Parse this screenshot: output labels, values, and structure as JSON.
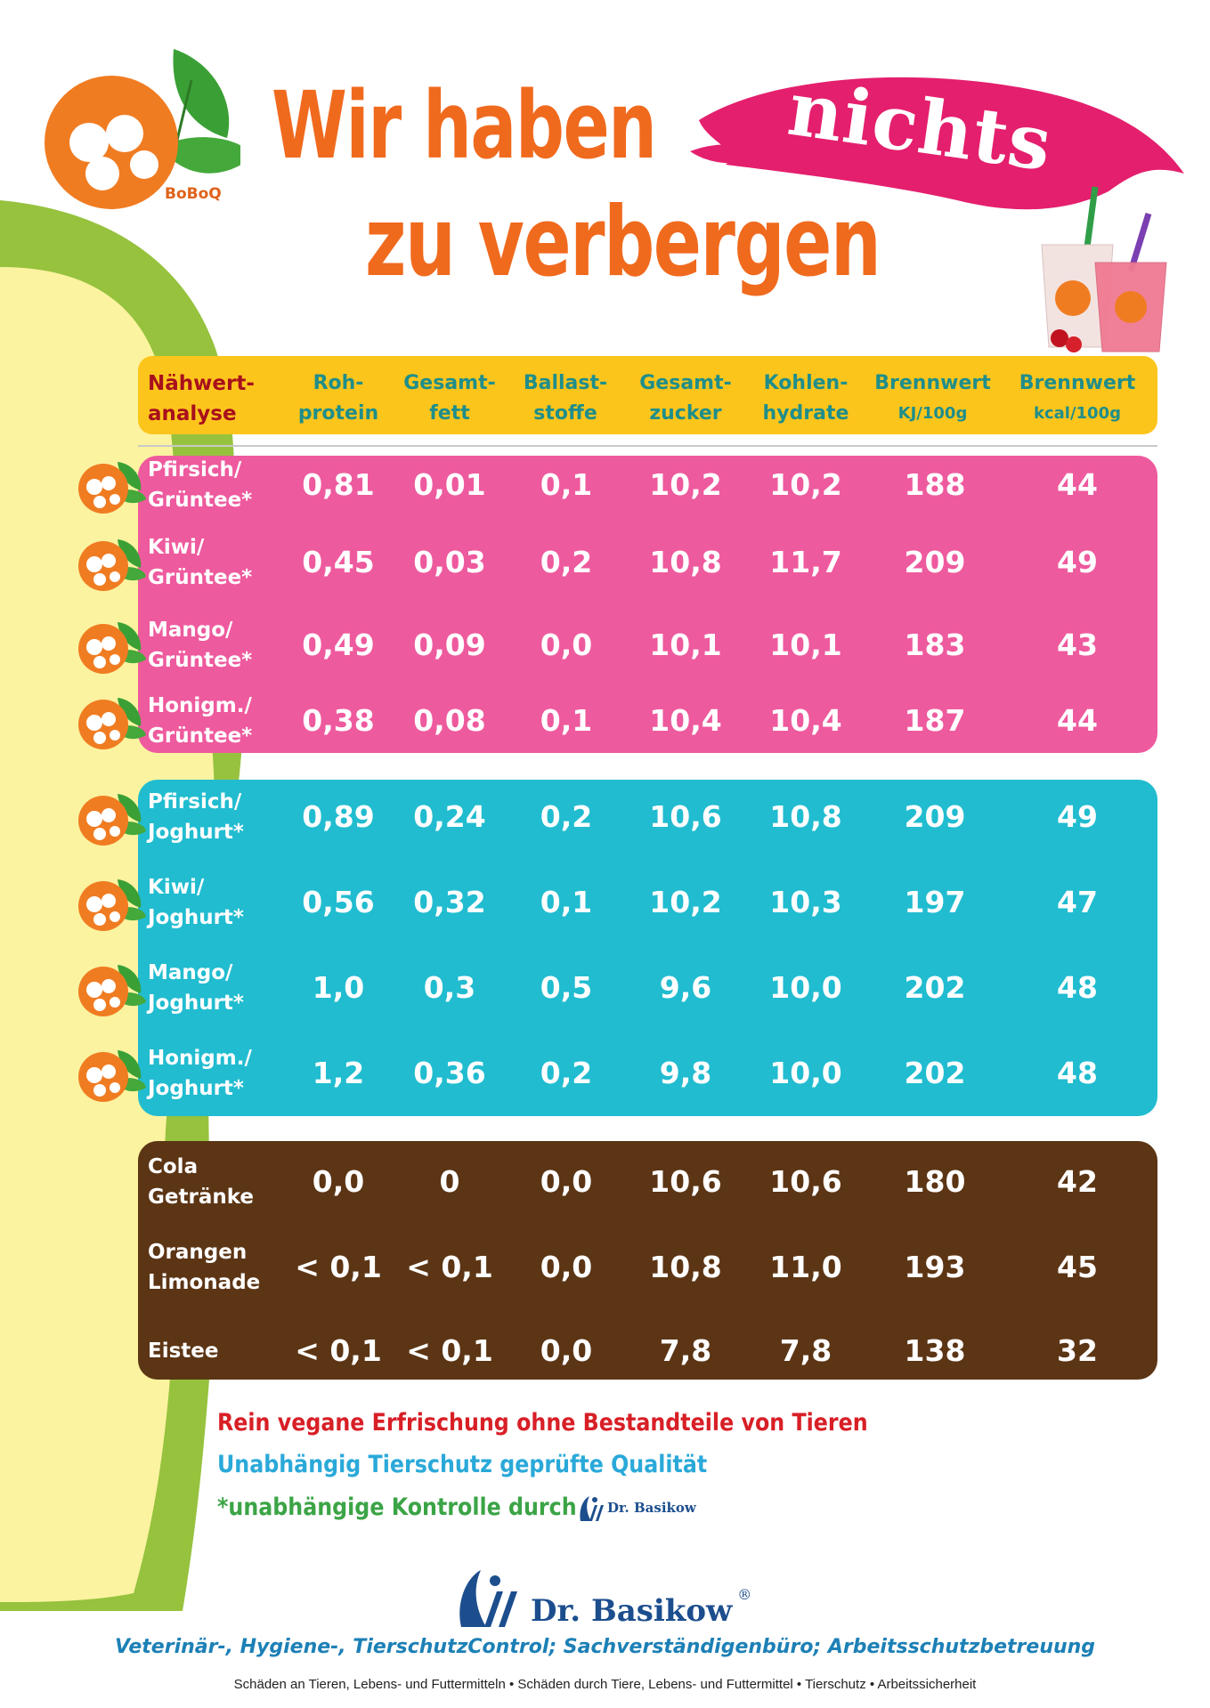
{
  "header": {
    "logo_text": "BoBoQ",
    "title_line1": "Wir haben",
    "title_highlight": "nichts",
    "title_line2": "zu verbergen"
  },
  "table": {
    "columns": [
      [
        "Nähwert-",
        "analyse"
      ],
      [
        "Roh-",
        "protein"
      ],
      [
        "Gesamt-",
        "fett"
      ],
      [
        "Ballast-",
        "stoffe"
      ],
      [
        "Gesamt-",
        "zucker"
      ],
      [
        "Kohlen-",
        "hydrate"
      ],
      [
        "Brennwert",
        "KJ/100g"
      ],
      [
        "Brennwert",
        "kcal/100g"
      ]
    ],
    "groups": [
      {
        "color": "#ee5a9e",
        "rows": [
          {
            "label": "Pfirsich/\nGrüntee*",
            "values": [
              "0,81",
              "0,01",
              "0,1",
              "10,2",
              "10,2",
              "188",
              "44"
            ]
          },
          {
            "label": "Kiwi/\nGrüntee*",
            "values": [
              "0,45",
              "0,03",
              "0,2",
              "10,8",
              "11,7",
              "209",
              "49"
            ]
          },
          {
            "label": "Mango/\nGrüntee*",
            "values": [
              "0,49",
              "0,09",
              "0,0",
              "10,1",
              "10,1",
              "183",
              "43"
            ]
          },
          {
            "label": "Honigm./\nGrüntee*",
            "values": [
              "0,38",
              "0,08",
              "0,1",
              "10,4",
              "10,4",
              "187",
              "44"
            ]
          }
        ]
      },
      {
        "color": "#21bcd0",
        "rows": [
          {
            "label": "Pfirsich/\nJoghurt*",
            "values": [
              "0,89",
              "0,24",
              "0,2",
              "10,6",
              "10,8",
              "209",
              "49"
            ]
          },
          {
            "label": "Kiwi/\nJoghurt*",
            "values": [
              "0,56",
              "0,32",
              "0,1",
              "10,2",
              "10,3",
              "197",
              "47"
            ]
          },
          {
            "label": "Mango/\nJoghurt*",
            "values": [
              "1,0",
              "0,3",
              "0,5",
              "9,6",
              "10,0",
              "202",
              "48"
            ]
          },
          {
            "label": "Honigm./\nJoghurt*",
            "values": [
              "1,2",
              "0,36",
              "0,2",
              "9,8",
              "10,0",
              "202",
              "48"
            ]
          }
        ]
      },
      {
        "color": "#5c3515",
        "rows": [
          {
            "label": "Cola\nGetränke",
            "values": [
              "0,0",
              "0",
              "0,0",
              "10,6",
              "10,6",
              "180",
              "42"
            ]
          },
          {
            "label": "Orangen\nLimonade",
            "values": [
              "< 0,1",
              "< 0,1",
              "0,0",
              "10,8",
              "11,0",
              "193",
              "45"
            ]
          },
          {
            "label": "Eistee",
            "values": [
              "< 0,1",
              "< 0,1",
              "0,0",
              "7,8",
              "7,8",
              "138",
              "32"
            ]
          }
        ]
      }
    ]
  },
  "footer": {
    "line1": "Rein vegane Erfrischung ohne Bestandteile von Tieren",
    "line2": "Unabhängig Tierschutz geprüfte Qualität",
    "line3": "*unabhängige Kontrolle durch",
    "small_brand": "Dr. Basikow",
    "brand": "Dr. Basikow",
    "registered": "®",
    "subtitle": "Veterinär-, Hygiene-, TierschutzControl; Sachverständigenbüro; Arbeitsschutzbetreuung",
    "fineprint": "Schäden an Tieren, Lebens- und Futtermitteln • Schäden durch Tiere, Lebens- und Futtermittel • Tierschutz • Arbeitssicherheit"
  }
}
